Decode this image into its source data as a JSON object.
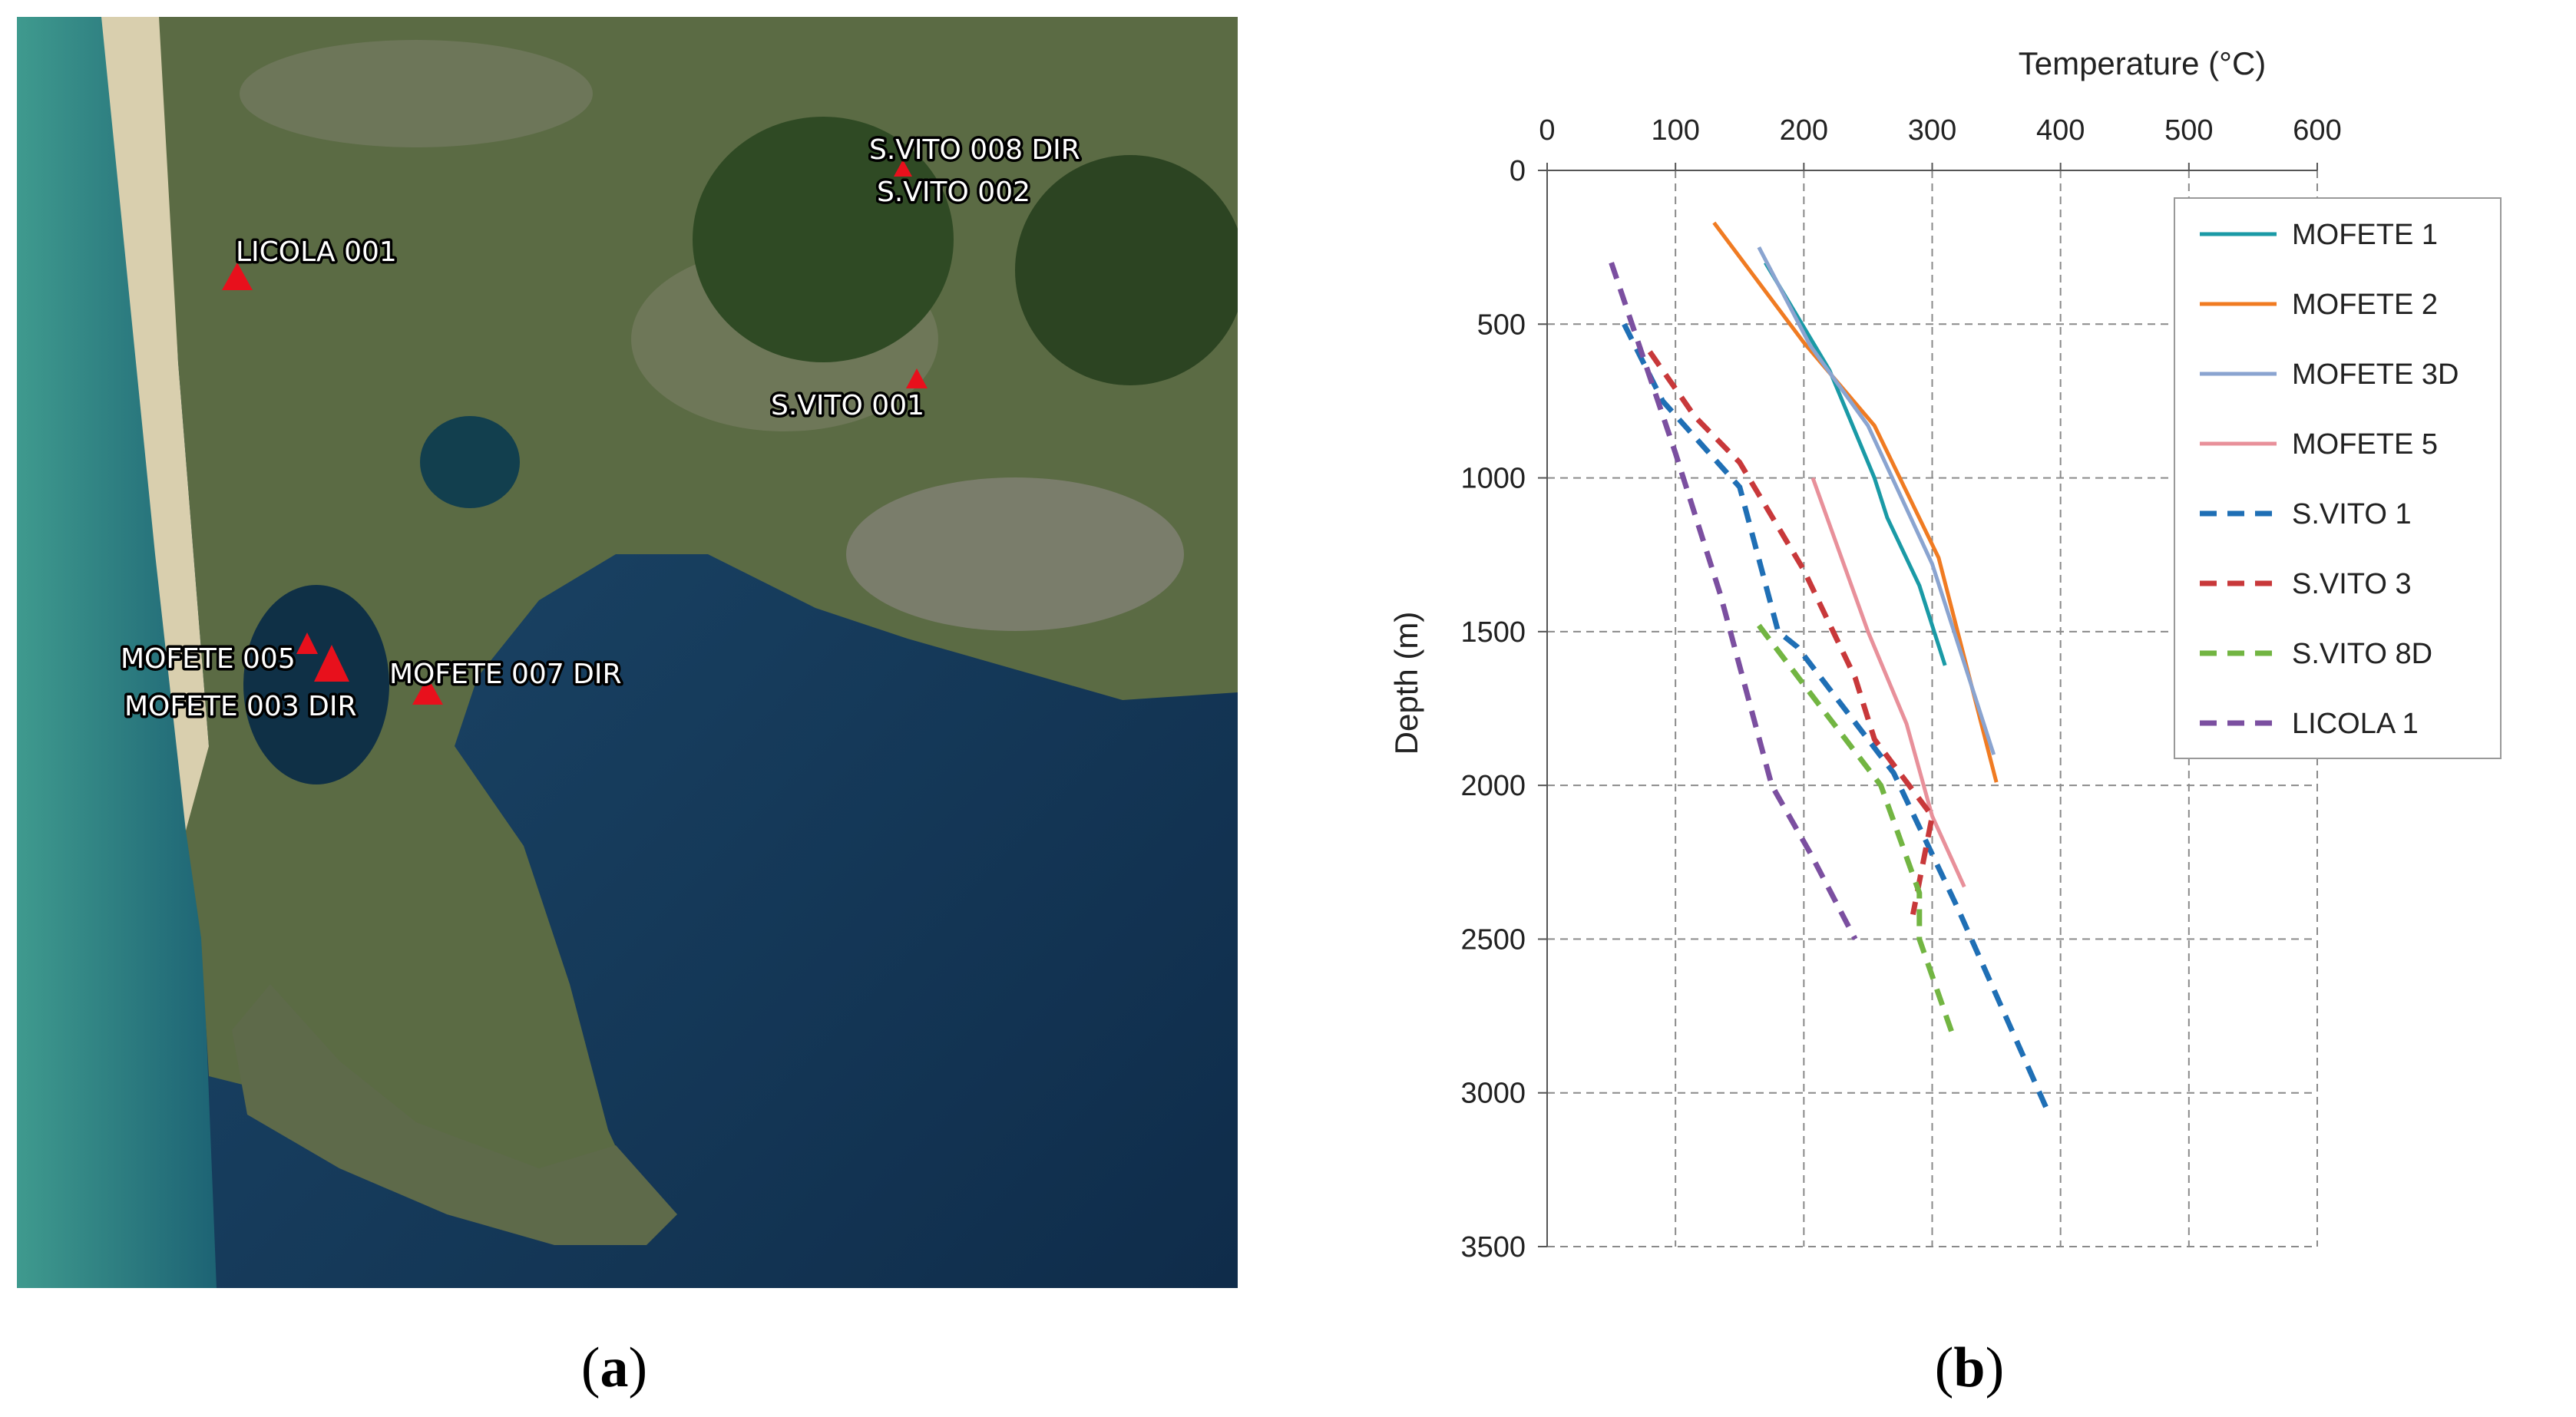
{
  "figure": {
    "caption_a": "a",
    "caption_b": "b"
  },
  "map": {
    "colors": {
      "sea": "#163a5c",
      "land": "#5b6b44",
      "marker": "#e8101c",
      "label_fill": "#ffffff",
      "label_outline": "#000000"
    },
    "wells": [
      {
        "name": "S.VITO 008 DIR"
      },
      {
        "name": "S.VITO 002"
      },
      {
        "name": "LICOLA 001"
      },
      {
        "name": "S.VITO 001"
      },
      {
        "name": "MOFETE 005"
      },
      {
        "name": "MOFETE 003 DIR"
      },
      {
        "name": "MOFETE 007 DIR"
      }
    ]
  },
  "chart_data": {
    "type": "line",
    "xlabel": "Temperature (°C)",
    "ylabel": "Depth (m)",
    "xlim": [
      0,
      600
    ],
    "ylim": [
      0,
      3500
    ],
    "y_inverted": true,
    "x_axis_position": "top",
    "xticks": [
      0,
      100,
      200,
      300,
      400,
      500,
      600
    ],
    "yticks": [
      0,
      500,
      1000,
      1500,
      2000,
      2500,
      3000,
      3500
    ],
    "grid": true,
    "legend_position": "top-right",
    "series": [
      {
        "name": "MOFETE 1",
        "color": "#1a9aa6",
        "dash": "solid",
        "points": [
          [
            170,
            300
          ],
          [
            220,
            650
          ],
          [
            255,
            1000
          ],
          [
            265,
            1130
          ],
          [
            290,
            1350
          ],
          [
            310,
            1610
          ]
        ]
      },
      {
        "name": "MOFETE 2",
        "color": "#f07b22",
        "dash": "solid",
        "points": [
          [
            130,
            170
          ],
          [
            200,
            560
          ],
          [
            255,
            830
          ],
          [
            305,
            1260
          ],
          [
            350,
            1990
          ]
        ]
      },
      {
        "name": "MOFETE 3D",
        "color": "#8aa4d0",
        "dash": "solid",
        "points": [
          [
            165,
            250
          ],
          [
            205,
            570
          ],
          [
            250,
            830
          ],
          [
            300,
            1280
          ],
          [
            348,
            1900
          ]
        ]
      },
      {
        "name": "MOFETE 5",
        "color": "#e8909a",
        "dash": "solid",
        "points": [
          [
            207,
            1000
          ],
          [
            250,
            1500
          ],
          [
            280,
            1800
          ],
          [
            300,
            2100
          ],
          [
            325,
            2330
          ]
        ]
      },
      {
        "name": "S.VITO 1",
        "color": "#1f6fb5",
        "dash": "dashed",
        "points": [
          [
            60,
            500
          ],
          [
            90,
            750
          ],
          [
            150,
            1030
          ],
          [
            180,
            1500
          ],
          [
            195,
            1550
          ],
          [
            270,
            1960
          ],
          [
            320,
            2400
          ],
          [
            390,
            3060
          ]
        ]
      },
      {
        "name": "S.VITO 3",
        "color": "#c8383a",
        "dash": "dashed",
        "points": [
          [
            80,
            590
          ],
          [
            115,
            800
          ],
          [
            150,
            950
          ],
          [
            200,
            1300
          ],
          [
            240,
            1650
          ],
          [
            255,
            1850
          ],
          [
            300,
            2100
          ],
          [
            285,
            2420
          ]
        ]
      },
      {
        "name": "S.VITO 8D",
        "color": "#72b542",
        "dash": "dashed",
        "points": [
          [
            165,
            1480
          ],
          [
            205,
            1700
          ],
          [
            260,
            2000
          ],
          [
            290,
            2350
          ],
          [
            290,
            2500
          ],
          [
            315,
            2800
          ]
        ]
      },
      {
        "name": "LICOLA 1",
        "color": "#7b4fa0",
        "dash": "dashed",
        "points": [
          [
            50,
            300
          ],
          [
            100,
            920
          ],
          [
            135,
            1380
          ],
          [
            175,
            2000
          ],
          [
            205,
            2220
          ],
          [
            240,
            2500
          ]
        ]
      }
    ]
  }
}
